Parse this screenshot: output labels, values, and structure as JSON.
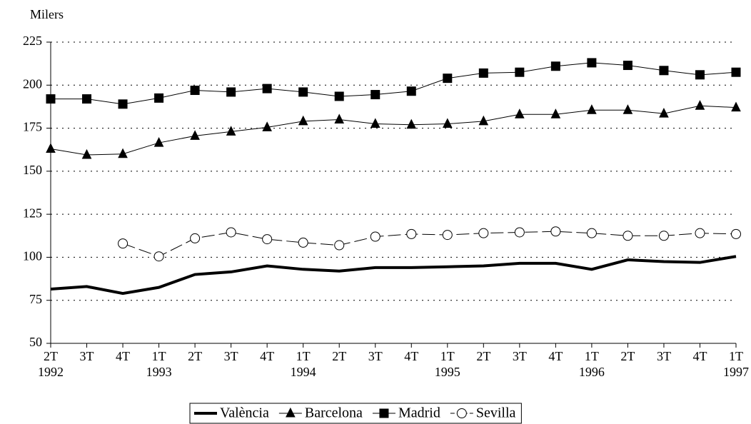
{
  "chart_data": {
    "type": "line",
    "y_axis_label": "Milers",
    "categories": [
      "2T",
      "3T",
      "4T",
      "1T",
      "2T",
      "3T",
      "4T",
      "1T",
      "2T",
      "3T",
      "4T",
      "1T",
      "2T",
      "3T",
      "4T",
      "1T",
      "2T",
      "3T",
      "4T",
      "1T"
    ],
    "years": [
      "1992",
      null,
      null,
      "1993",
      null,
      null,
      null,
      "1994",
      null,
      null,
      null,
      "1995",
      null,
      null,
      null,
      "1996",
      null,
      null,
      null,
      "1997"
    ],
    "ylim": [
      50,
      225
    ],
    "yticks": [
      50,
      75,
      100,
      125,
      150,
      175,
      200,
      225
    ],
    "grid": true,
    "legend": "bottom",
    "series": [
      {
        "name": "València",
        "color": "#000000",
        "marker": "none",
        "line_width": 4,
        "dashed": false,
        "values": [
          81.5,
          83,
          79,
          82.5,
          90,
          91.5,
          95,
          93,
          92,
          94,
          94,
          94.5,
          95,
          96.5,
          96.5,
          93,
          98.5,
          97.5,
          97,
          100.5
        ]
      },
      {
        "name": "Barcelona",
        "color": "#000000",
        "marker": "triangle",
        "line_width": 1,
        "dashed": false,
        "values": [
          163,
          159.5,
          160,
          166.5,
          170.5,
          173,
          175.5,
          179,
          180,
          177.5,
          177,
          177.5,
          179,
          183,
          183,
          185.5,
          185.5,
          183.5,
          188,
          187
        ]
      },
      {
        "name": "Madrid",
        "color": "#000000",
        "marker": "square",
        "line_width": 1,
        "dashed": false,
        "values": [
          192,
          192,
          189,
          192.5,
          197,
          196,
          198,
          196,
          193.5,
          194.5,
          196.5,
          204,
          207,
          207.5,
          211,
          213,
          211.5,
          208.5,
          206,
          207.5
        ]
      },
      {
        "name": "Sevilla",
        "color": "#000000",
        "marker": "circle",
        "line_width": 1,
        "dashed": true,
        "values": [
          null,
          null,
          108,
          100.5,
          111,
          114.5,
          110.5,
          108.5,
          107,
          112,
          113.5,
          113,
          114,
          114.5,
          115,
          114,
          112.5,
          112.5,
          114,
          113.5
        ]
      }
    ]
  }
}
